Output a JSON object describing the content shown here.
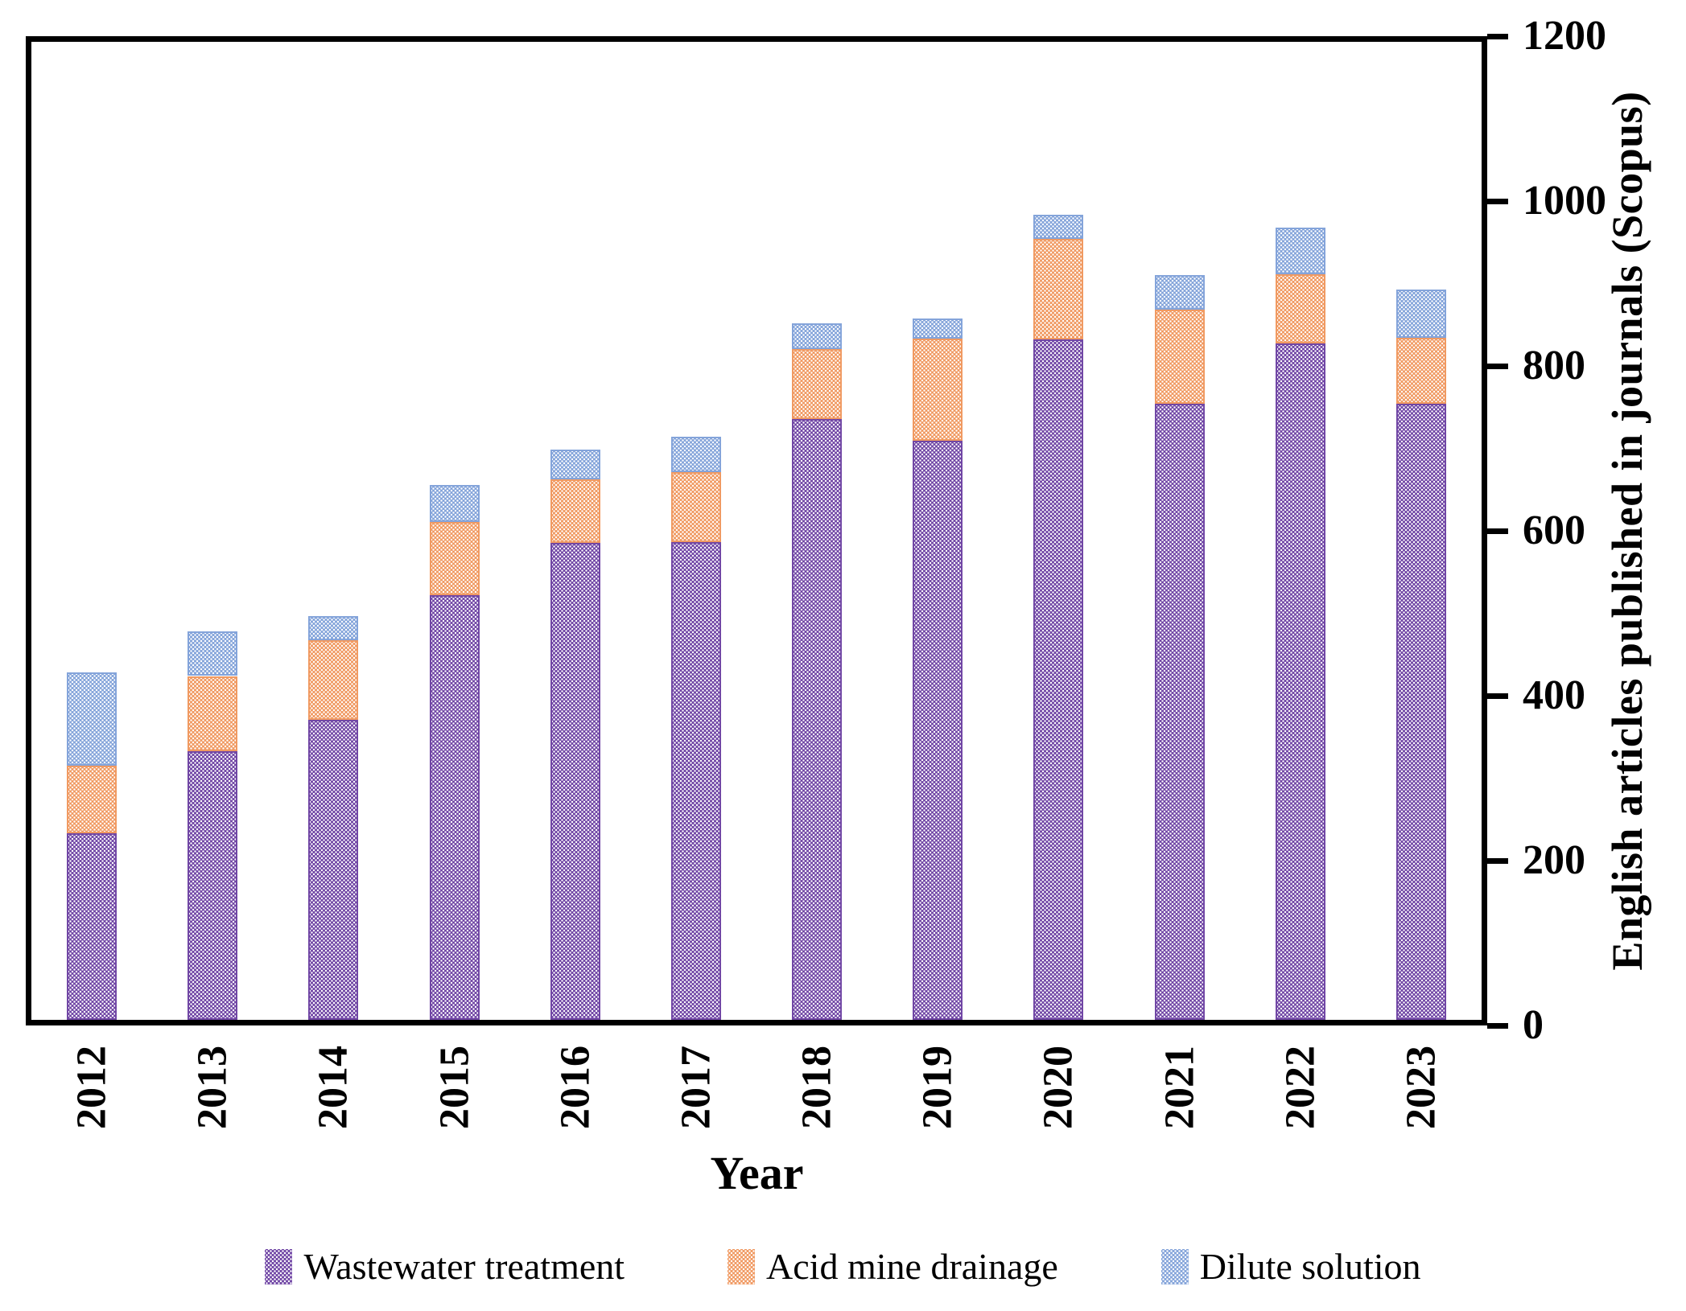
{
  "chart_data": {
    "type": "bar",
    "stacked": true,
    "title": "",
    "xlabel": "Year",
    "ylabel": "English articles published in journals (Scopus)",
    "ylim": [
      0,
      1200
    ],
    "y_ticks": [
      0,
      200,
      400,
      600,
      800,
      1000,
      1200
    ],
    "grid": false,
    "legend_position": "bottom",
    "bar_width_fraction": 0.41,
    "axis_color": "#000000",
    "pattern_dot_color": "#ffffff",
    "categories": [
      "2012",
      "2013",
      "2014",
      "2015",
      "2016",
      "2017",
      "2018",
      "2019",
      "2020",
      "2021",
      "2022",
      "2023"
    ],
    "series": [
      {
        "name": "Wastewater treatment",
        "color": "#7147a5",
        "values": [
          229,
          330,
          368,
          521,
          585,
          586,
          737,
          711,
          835,
          756,
          830,
          756
        ]
      },
      {
        "name": "Acid mine drainage",
        "color": "#f09a62",
        "values": [
          83,
          92,
          98,
          90,
          78,
          86,
          86,
          125,
          123,
          115,
          85,
          81
        ]
      },
      {
        "name": "Dilute solution",
        "color": "#84a4da",
        "values": [
          114,
          54,
          30,
          45,
          37,
          43,
          32,
          25,
          30,
          42,
          57,
          59
        ]
      }
    ],
    "totals": [
      426,
      476,
      496,
      656,
      700,
      715,
      855,
      861,
      988,
      913,
      972,
      896
    ]
  }
}
